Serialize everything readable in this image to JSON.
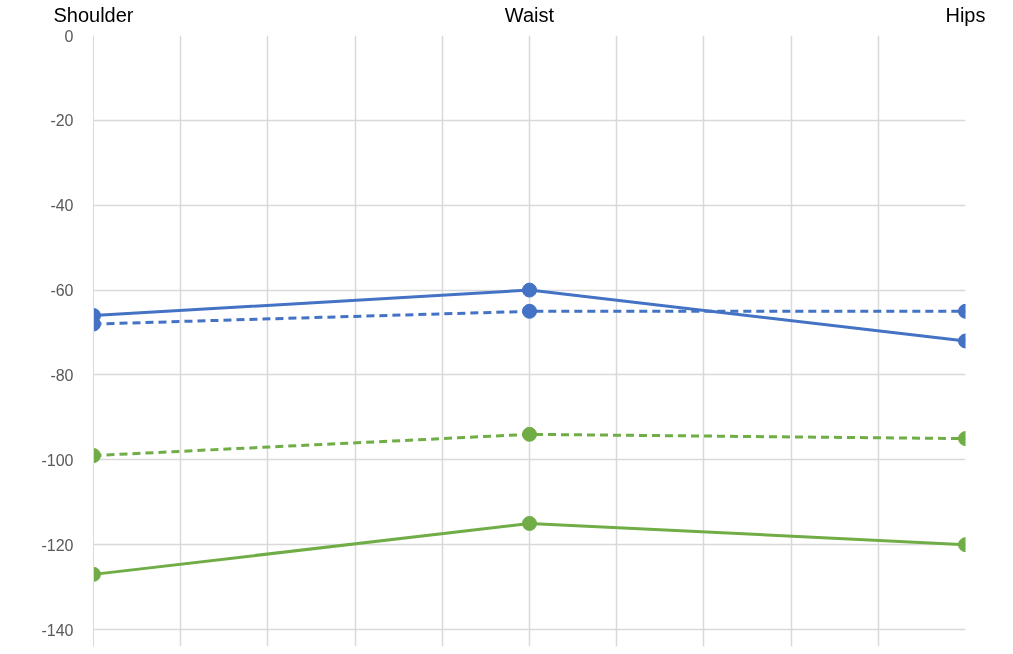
{
  "chart_data": {
    "type": "line",
    "categories": [
      "Shoulder",
      null,
      null,
      null,
      null,
      "Waist",
      null,
      null,
      null,
      null,
      "Hips"
    ],
    "ylim": [
      -144,
      0
    ],
    "yticks": [
      0,
      -20,
      -40,
      -60,
      -80,
      -100,
      -120,
      -140
    ],
    "grid": true,
    "marker": "circle",
    "series": [
      {
        "color": "#4472c4",
        "values": [
          -66,
          null,
          null,
          null,
          null,
          -60,
          null,
          null,
          null,
          null,
          -72
        ],
        "line_style": "solid"
      },
      {
        "color": "#4472c4",
        "values": [
          -68,
          null,
          null,
          null,
          null,
          -65,
          null,
          null,
          null,
          null,
          -65
        ],
        "line_style": "dashed"
      },
      {
        "color": "#70ad47",
        "values": [
          -99,
          null,
          null,
          null,
          null,
          -94,
          null,
          null,
          null,
          null,
          -95
        ],
        "line_style": "dashed"
      },
      {
        "color": "#70ad47",
        "values": [
          -127,
          null,
          null,
          null,
          null,
          -115,
          null,
          null,
          null,
          null,
          -120
        ],
        "line_style": "solid"
      }
    ]
  }
}
